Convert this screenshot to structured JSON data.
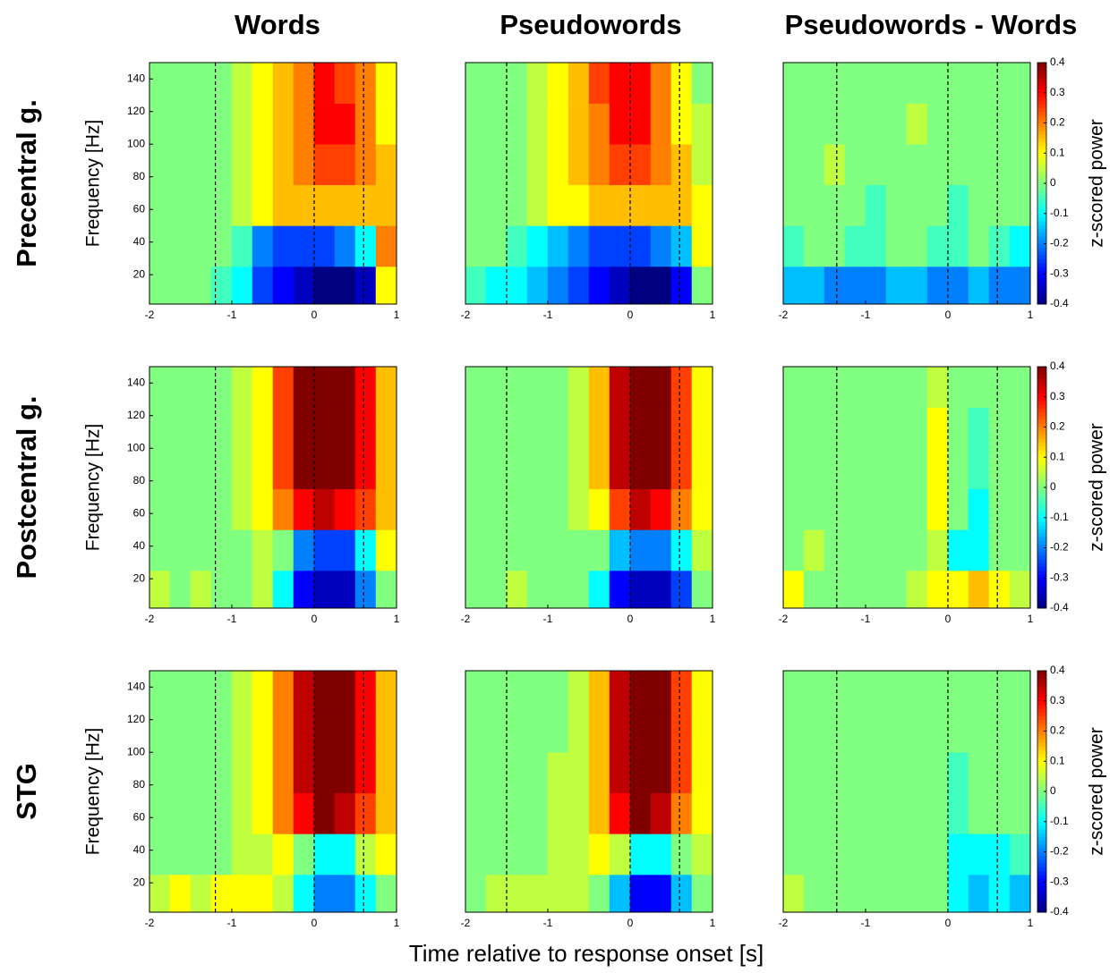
{
  "column_titles": [
    "Words",
    "Pseudowords",
    "Pseudowords - Words"
  ],
  "row_labels": [
    "Precentral g.",
    "Postcentral g.",
    "STG"
  ],
  "xlabel": "Time relative to response onset [s]",
  "chart_data": [
    {
      "type": "heatmap",
      "colormap": "jet",
      "clim": [
        -0.4,
        0.4
      ],
      "ylabel": "Frequency [Hz]",
      "x_edges": [
        -2,
        -1.75,
        -1.5,
        -1.25,
        -1,
        -0.75,
        -0.5,
        -0.25,
        0,
        0.25,
        0.5,
        0.75,
        1
      ],
      "y_edges": [
        2,
        25,
        50,
        75,
        100,
        125,
        150
      ],
      "xlim": [
        -2,
        1
      ],
      "xticks": [
        -2,
        -1,
        0,
        1
      ],
      "ylim": [
        2,
        150
      ],
      "yticks": [
        20,
        40,
        60,
        80,
        100,
        120,
        140
      ],
      "vlines": [
        -1.2,
        0,
        0.6
      ],
      "z": [
        [
          0,
          0,
          0,
          -0.05,
          -0.1,
          -0.25,
          -0.3,
          -0.35,
          -0.4,
          -0.4,
          -0.35,
          0.1
        ],
        [
          0,
          0,
          0,
          0,
          -0.05,
          -0.2,
          -0.25,
          -0.25,
          -0.25,
          -0.2,
          -0.1,
          0.2
        ],
        [
          0,
          0,
          0,
          0,
          0.05,
          0.1,
          0.15,
          0.15,
          0.15,
          0.15,
          0.15,
          0.15
        ],
        [
          0,
          0,
          0,
          0,
          0.05,
          0.1,
          0.15,
          0.2,
          0.25,
          0.25,
          0.2,
          0.15
        ],
        [
          0,
          0,
          0,
          0,
          0.05,
          0.1,
          0.15,
          0.2,
          0.3,
          0.3,
          0.2,
          0.1
        ],
        [
          0,
          0,
          0,
          0,
          0.05,
          0.1,
          0.15,
          0.2,
          0.3,
          0.25,
          0.2,
          0.1
        ]
      ]
    },
    {
      "type": "heatmap",
      "colormap": "jet",
      "clim": [
        -0.4,
        0.4
      ],
      "x_edges": [
        -2,
        -1.75,
        -1.5,
        -1.25,
        -1,
        -0.75,
        -0.5,
        -0.25,
        0,
        0.25,
        0.5,
        0.75,
        1
      ],
      "y_edges": [
        2,
        25,
        50,
        75,
        100,
        125,
        150
      ],
      "xlim": [
        -2,
        1
      ],
      "xticks": [
        -2,
        -1,
        0,
        1
      ],
      "ylim": [
        2,
        150
      ],
      "vlines": [
        -1.5,
        0,
        0.6
      ],
      "z": [
        [
          -0.05,
          -0.1,
          -0.1,
          -0.15,
          -0.2,
          -0.25,
          -0.3,
          -0.35,
          -0.4,
          -0.4,
          -0.3,
          0
        ],
        [
          0,
          0,
          -0.05,
          -0.1,
          -0.15,
          -0.2,
          -0.25,
          -0.25,
          -0.25,
          -0.2,
          -0.15,
          0.1
        ],
        [
          0,
          0,
          0,
          0.05,
          0.1,
          0.1,
          0.15,
          0.15,
          0.15,
          0.15,
          0.15,
          0.1
        ],
        [
          0,
          0,
          0,
          0.05,
          0.1,
          0.15,
          0.2,
          0.25,
          0.25,
          0.2,
          0.15,
          0.05
        ],
        [
          0,
          0,
          0,
          0.05,
          0.1,
          0.15,
          0.2,
          0.3,
          0.3,
          0.2,
          0.1,
          0.05
        ],
        [
          0,
          0,
          0,
          0.05,
          0.1,
          0.15,
          0.25,
          0.3,
          0.3,
          0.2,
          0.1,
          0
        ]
      ]
    },
    {
      "type": "heatmap",
      "colormap": "jet",
      "clim": [
        -0.4,
        0.4
      ],
      "colorbar": {
        "label": "z-scored power",
        "ticks": [
          -0.4,
          -0.3,
          -0.2,
          -0.1,
          0,
          0.1,
          0.2,
          0.3,
          0.4
        ]
      },
      "x_edges": [
        -2,
        -1.75,
        -1.5,
        -1.25,
        -1,
        -0.75,
        -0.5,
        -0.25,
        0,
        0.25,
        0.5,
        0.75,
        1
      ],
      "y_edges": [
        2,
        25,
        50,
        75,
        100,
        125,
        150
      ],
      "xlim": [
        -2,
        1
      ],
      "xticks": [
        -2,
        -1,
        0,
        1
      ],
      "ylim": [
        2,
        150
      ],
      "vlines": [
        -1.35,
        0,
        0.6
      ],
      "z": [
        [
          -0.15,
          -0.15,
          -0.2,
          -0.2,
          -0.2,
          -0.15,
          -0.15,
          -0.2,
          -0.2,
          -0.15,
          -0.2,
          -0.2
        ],
        [
          -0.05,
          0,
          0,
          -0.05,
          -0.05,
          0,
          0,
          -0.05,
          -0.05,
          0,
          -0.05,
          -0.1
        ],
        [
          0,
          0,
          0,
          0,
          -0.05,
          0,
          0,
          0,
          -0.05,
          0,
          0,
          0
        ],
        [
          0,
          0,
          0.05,
          0,
          0,
          0,
          0,
          0,
          0,
          0,
          0,
          0
        ],
        [
          0,
          0,
          0,
          0,
          0,
          0,
          0.05,
          0,
          0,
          0,
          0,
          0
        ],
        [
          0,
          0,
          0,
          0,
          0,
          0,
          0,
          0,
          0,
          0,
          0,
          0
        ]
      ]
    },
    {
      "type": "heatmap",
      "colormap": "jet",
      "clim": [
        -0.4,
        0.4
      ],
      "ylabel": "Frequency [Hz]",
      "x_edges": [
        -2,
        -1.75,
        -1.5,
        -1.25,
        -1,
        -0.75,
        -0.5,
        -0.25,
        0,
        0.25,
        0.5,
        0.75,
        1
      ],
      "y_edges": [
        2,
        25,
        50,
        75,
        100,
        125,
        150
      ],
      "xlim": [
        -2,
        1
      ],
      "xticks": [
        -2,
        -1,
        0,
        1
      ],
      "ylim": [
        2,
        150
      ],
      "yticks": [
        20,
        40,
        60,
        80,
        100,
        120,
        140
      ],
      "vlines": [
        -1.2,
        0,
        0.6
      ],
      "z": [
        [
          0.05,
          0,
          0.05,
          0,
          0,
          0.05,
          -0.1,
          -0.3,
          -0.35,
          -0.35,
          -0.2,
          0
        ],
        [
          0,
          0,
          0,
          0,
          0,
          0.05,
          0,
          -0.2,
          -0.25,
          -0.25,
          -0.1,
          0.1
        ],
        [
          0,
          0,
          0,
          0,
          0.05,
          0.1,
          0.2,
          0.3,
          0.35,
          0.3,
          0.25,
          0.15
        ],
        [
          0,
          0,
          0,
          0,
          0.05,
          0.1,
          0.25,
          0.4,
          0.4,
          0.4,
          0.3,
          0.15
        ],
        [
          0,
          0,
          0,
          0,
          0.05,
          0.1,
          0.25,
          0.4,
          0.4,
          0.4,
          0.3,
          0.15
        ],
        [
          0,
          0,
          0,
          0,
          0.05,
          0.1,
          0.25,
          0.4,
          0.4,
          0.4,
          0.3,
          0.15
        ]
      ]
    },
    {
      "type": "heatmap",
      "colormap": "jet",
      "clim": [
        -0.4,
        0.4
      ],
      "x_edges": [
        -2,
        -1.75,
        -1.5,
        -1.25,
        -1,
        -0.75,
        -0.5,
        -0.25,
        0,
        0.25,
        0.5,
        0.75,
        1
      ],
      "y_edges": [
        2,
        25,
        50,
        75,
        100,
        125,
        150
      ],
      "xlim": [
        -2,
        1
      ],
      "xticks": [
        -2,
        -1,
        0,
        1
      ],
      "ylim": [
        2,
        150
      ],
      "vlines": [
        -1.5,
        0,
        0.6
      ],
      "z": [
        [
          0,
          0,
          0.05,
          0,
          0,
          0,
          -0.1,
          -0.3,
          -0.35,
          -0.35,
          -0.25,
          0
        ],
        [
          0,
          0,
          0,
          0,
          0,
          0,
          0,
          -0.15,
          -0.2,
          -0.2,
          -0.1,
          0.05
        ],
        [
          0,
          0,
          0,
          0,
          0,
          0.05,
          0.1,
          0.25,
          0.35,
          0.3,
          0.2,
          0.1
        ],
        [
          0,
          0,
          0,
          0,
          0,
          0.05,
          0.15,
          0.35,
          0.4,
          0.4,
          0.25,
          0.1
        ],
        [
          0,
          0,
          0,
          0,
          0,
          0.05,
          0.15,
          0.35,
          0.4,
          0.4,
          0.25,
          0.1
        ],
        [
          0,
          0,
          0,
          0,
          0,
          0.05,
          0.15,
          0.35,
          0.4,
          0.4,
          0.25,
          0.1
        ]
      ]
    },
    {
      "type": "heatmap",
      "colormap": "jet",
      "clim": [
        -0.4,
        0.4
      ],
      "colorbar": {
        "label": "z-scored power",
        "ticks": [
          -0.4,
          -0.3,
          -0.2,
          -0.1,
          0,
          0.1,
          0.2,
          0.3,
          0.4
        ]
      },
      "x_edges": [
        -2,
        -1.75,
        -1.5,
        -1.25,
        -1,
        -0.75,
        -0.5,
        -0.25,
        0,
        0.25,
        0.5,
        0.75,
        1
      ],
      "y_edges": [
        2,
        25,
        50,
        75,
        100,
        125,
        150
      ],
      "xlim": [
        -2,
        1
      ],
      "xticks": [
        -2,
        -1,
        0,
        1
      ],
      "ylim": [
        2,
        150
      ],
      "vlines": [
        -1.35,
        0,
        0.6
      ],
      "z": [
        [
          0.1,
          0,
          0,
          0,
          0,
          0,
          0.05,
          0.1,
          0.1,
          0.15,
          0.1,
          0.05
        ],
        [
          0,
          0.05,
          0,
          0,
          0,
          0,
          0,
          0.05,
          -0.1,
          -0.1,
          0,
          0
        ],
        [
          0,
          0,
          0,
          0,
          0,
          0,
          0,
          0.1,
          0,
          -0.1,
          0,
          0
        ],
        [
          0,
          0,
          0,
          0,
          0,
          0,
          0,
          0.1,
          0,
          -0.05,
          0,
          0
        ],
        [
          0,
          0,
          0,
          0,
          0,
          0,
          0,
          0.1,
          0,
          -0.05,
          0,
          0
        ],
        [
          0,
          0,
          0,
          0,
          0,
          0,
          0,
          0.05,
          0,
          0,
          0,
          0
        ]
      ]
    },
    {
      "type": "heatmap",
      "colormap": "jet",
      "clim": [
        -0.4,
        0.4
      ],
      "ylabel": "Frequency [Hz]",
      "x_edges": [
        -2,
        -1.75,
        -1.5,
        -1.25,
        -1,
        -0.75,
        -0.5,
        -0.25,
        0,
        0.25,
        0.5,
        0.75,
        1
      ],
      "y_edges": [
        2,
        25,
        50,
        75,
        100,
        125,
        150
      ],
      "xlim": [
        -2,
        1
      ],
      "xticks": [
        -2,
        -1,
        0,
        1
      ],
      "ylim": [
        2,
        150
      ],
      "yticks": [
        20,
        40,
        60,
        80,
        100,
        120,
        140
      ],
      "vlines": [
        -1.2,
        0,
        0.6
      ],
      "z": [
        [
          0.05,
          0.1,
          0.05,
          0.1,
          0.1,
          0.1,
          0.05,
          -0.1,
          -0.2,
          -0.2,
          -0.1,
          0
        ],
        [
          0,
          0,
          0,
          0,
          0.05,
          0.05,
          0.1,
          0,
          -0.1,
          -0.1,
          0.05,
          0.1
        ],
        [
          0,
          0,
          0,
          0,
          0.05,
          0.1,
          0.2,
          0.3,
          0.4,
          0.35,
          0.25,
          0.15
        ],
        [
          0,
          0,
          0,
          0,
          0.05,
          0.1,
          0.2,
          0.35,
          0.4,
          0.4,
          0.3,
          0.15
        ],
        [
          0,
          0,
          0,
          0,
          0.05,
          0.1,
          0.2,
          0.35,
          0.4,
          0.4,
          0.3,
          0.15
        ],
        [
          0,
          0,
          0,
          0,
          0.05,
          0.1,
          0.2,
          0.35,
          0.4,
          0.4,
          0.3,
          0.15
        ]
      ]
    },
    {
      "type": "heatmap",
      "colormap": "jet",
      "clim": [
        -0.4,
        0.4
      ],
      "x_edges": [
        -2,
        -1.75,
        -1.5,
        -1.25,
        -1,
        -0.75,
        -0.5,
        -0.25,
        0,
        0.25,
        0.5,
        0.75,
        1
      ],
      "y_edges": [
        2,
        25,
        50,
        75,
        100,
        125,
        150
      ],
      "xlim": [
        -2,
        1
      ],
      "xticks": [
        -2,
        -1,
        0,
        1
      ],
      "ylim": [
        2,
        150
      ],
      "vlines": [
        -1.5,
        0,
        0.6
      ],
      "z": [
        [
          0,
          0.05,
          0.05,
          0.05,
          0.05,
          0.05,
          0,
          -0.15,
          -0.3,
          -0.3,
          -0.15,
          0
        ],
        [
          0,
          0,
          0,
          0,
          0.05,
          0.05,
          0.1,
          0.05,
          -0.1,
          -0.1,
          0,
          0.05
        ],
        [
          0,
          0,
          0,
          0,
          0.05,
          0.05,
          0.15,
          0.3,
          0.4,
          0.35,
          0.2,
          0.1
        ],
        [
          0,
          0,
          0,
          0,
          0.05,
          0.05,
          0.15,
          0.35,
          0.4,
          0.4,
          0.25,
          0.1
        ],
        [
          0,
          0,
          0,
          0,
          0,
          0.05,
          0.15,
          0.35,
          0.4,
          0.4,
          0.25,
          0.1
        ],
        [
          0,
          0,
          0,
          0,
          0,
          0.05,
          0.15,
          0.35,
          0.4,
          0.4,
          0.25,
          0.1
        ]
      ]
    },
    {
      "type": "heatmap",
      "colormap": "jet",
      "clim": [
        -0.4,
        0.4
      ],
      "colorbar": {
        "label": "z-scored power",
        "ticks": [
          -0.4,
          -0.3,
          -0.2,
          -0.1,
          0,
          0.1,
          0.2,
          0.3,
          0.4
        ]
      },
      "x_edges": [
        -2,
        -1.75,
        -1.5,
        -1.25,
        -1,
        -0.75,
        -0.5,
        -0.25,
        0,
        0.25,
        0.5,
        0.75,
        1
      ],
      "y_edges": [
        2,
        25,
        50,
        75,
        100,
        125,
        150
      ],
      "xlim": [
        -2,
        1
      ],
      "xticks": [
        -2,
        -1,
        0,
        1
      ],
      "ylim": [
        2,
        150
      ],
      "vlines": [
        -1.35,
        0,
        0.6
      ],
      "z": [
        [
          0.05,
          0,
          0,
          0,
          0,
          0,
          0,
          0,
          -0.1,
          -0.15,
          -0.1,
          -0.15
        ],
        [
          0,
          0,
          0,
          0,
          0,
          0,
          0,
          0,
          -0.1,
          -0.1,
          -0.1,
          -0.05
        ],
        [
          0,
          0,
          0,
          0,
          0,
          0,
          0,
          0,
          -0.05,
          0,
          0,
          0
        ],
        [
          0,
          0,
          0,
          0,
          0,
          0,
          0,
          0,
          -0.05,
          0,
          0,
          0
        ],
        [
          0,
          0,
          0,
          0,
          0,
          0,
          0,
          0,
          0,
          0,
          0,
          0
        ],
        [
          0,
          0,
          0,
          0,
          0,
          0,
          0,
          0,
          0,
          0,
          0,
          0
        ]
      ]
    }
  ]
}
